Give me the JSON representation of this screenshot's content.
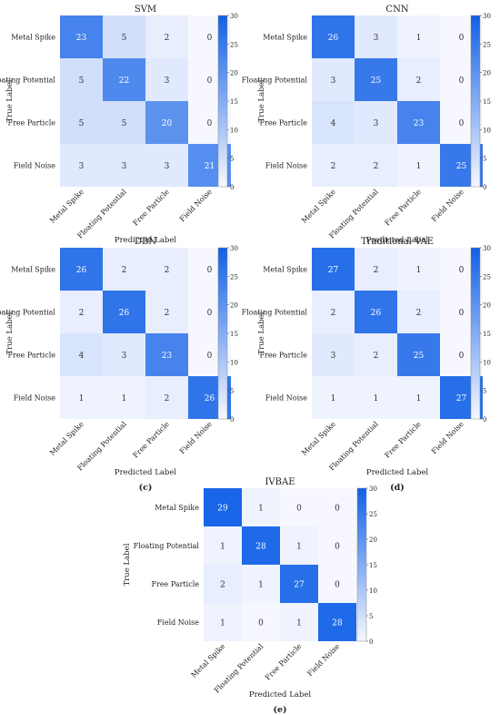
{
  "chart_data": [
    {
      "type": "heatmap",
      "title": "SVM",
      "panel_label": "(a)",
      "xlabel": "Predicted Label",
      "ylabel": "True Label",
      "categories": [
        "Metal Spike",
        "Floating Potential",
        "Free Particle",
        "Field Noise"
      ],
      "values": [
        [
          23,
          5,
          2,
          0
        ],
        [
          5,
          22,
          3,
          0
        ],
        [
          5,
          5,
          20,
          0
        ],
        [
          3,
          3,
          3,
          21
        ]
      ],
      "colorbar": {
        "range": [
          0,
          30
        ],
        "ticks": [
          "0",
          "5",
          "10",
          "15",
          "20",
          "25",
          "30"
        ]
      }
    },
    {
      "type": "heatmap",
      "title": "CNN",
      "panel_label": "(b)",
      "xlabel": "Predicted Label",
      "ylabel": "True Label",
      "categories": [
        "Metal Spike",
        "Floating Potential",
        "Free Particle",
        "Field Noise"
      ],
      "values": [
        [
          26,
          3,
          1,
          0
        ],
        [
          3,
          25,
          2,
          0
        ],
        [
          4,
          3,
          23,
          0
        ],
        [
          2,
          2,
          1,
          25
        ]
      ],
      "colorbar": {
        "range": [
          0,
          30
        ],
        "ticks": [
          "0",
          "5",
          "10",
          "15",
          "20",
          "25",
          "30"
        ]
      }
    },
    {
      "type": "heatmap",
      "title": "DBN",
      "panel_label": "(c)",
      "xlabel": "Predicted Label",
      "ylabel": "True Label",
      "categories": [
        "Metal Spike",
        "Floating Potential",
        "Free Particle",
        "Field Noise"
      ],
      "values": [
        [
          26,
          2,
          2,
          0
        ],
        [
          2,
          26,
          2,
          0
        ],
        [
          4,
          3,
          23,
          0
        ],
        [
          1,
          1,
          2,
          26
        ]
      ],
      "colorbar": {
        "range": [
          0,
          30
        ],
        "ticks": [
          "0",
          "5",
          "10",
          "15",
          "20",
          "25",
          "30"
        ]
      }
    },
    {
      "type": "heatmap",
      "title": "Traditional VAE",
      "panel_label": "(d)",
      "xlabel": "Predicted Label",
      "ylabel": "True Label",
      "categories": [
        "Metal Spike",
        "Floating Potential",
        "Free Particle",
        "Field Noise"
      ],
      "values": [
        [
          27,
          2,
          1,
          0
        ],
        [
          2,
          26,
          2,
          0
        ],
        [
          3,
          2,
          25,
          0
        ],
        [
          1,
          1,
          1,
          27
        ]
      ],
      "colorbar": {
        "range": [
          0,
          30
        ],
        "ticks": [
          "0",
          "5",
          "10",
          "15",
          "20",
          "25",
          "30"
        ]
      }
    },
    {
      "type": "heatmap",
      "title": "IVBAE",
      "panel_label": "(e)",
      "xlabel": "Predicted Label",
      "ylabel": "True Label",
      "categories": [
        "Metal Spike",
        "Floating Potential",
        "Free Particle",
        "Field Noise"
      ],
      "values": [
        [
          29,
          1,
          0,
          0
        ],
        [
          1,
          28,
          1,
          0
        ],
        [
          2,
          1,
          27,
          0
        ],
        [
          1,
          0,
          1,
          28
        ]
      ],
      "colorbar": {
        "range": [
          0,
          30
        ],
        "ticks": [
          "0",
          "5",
          "10",
          "15",
          "20",
          "25",
          "30"
        ]
      }
    }
  ],
  "colors": {
    "low": "#f7f8ff",
    "high": "#1060e6",
    "text_dark": "#333333",
    "text_light": "#ffffff"
  }
}
